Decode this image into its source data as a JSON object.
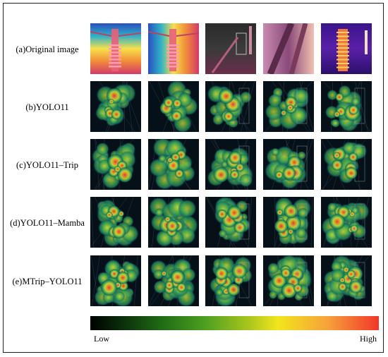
{
  "rows": [
    {
      "label": "(a)Original image",
      "kind": "thermal"
    },
    {
      "label": "(b)YOLO11",
      "kind": "heat"
    },
    {
      "label": "(c)YOLO11–Trip",
      "kind": "heat"
    },
    {
      "label": "(d)YOLO11–Mamba",
      "kind": "heat"
    },
    {
      "label": "(e)MTrip–YOLO11",
      "kind": "heat"
    }
  ],
  "colorbar": {
    "low_label": "Low",
    "high_label": "High",
    "colors": [
      "#000000",
      "#1f6d16",
      "#4ea020",
      "#f2e51c",
      "#f6a33a",
      "#f2362a"
    ]
  },
  "thermal_palette": [
    "#7a1f8a",
    "#d33a6a",
    "#f08a3a",
    "#f7e04a",
    "#2fb0c8",
    "#2a4fbf"
  ],
  "heat_palette": [
    "#051018",
    "#0c3a4a",
    "#1d7f63",
    "#4fae48",
    "#cfd43a",
    "#f08c2a",
    "#e83a26"
  ]
}
